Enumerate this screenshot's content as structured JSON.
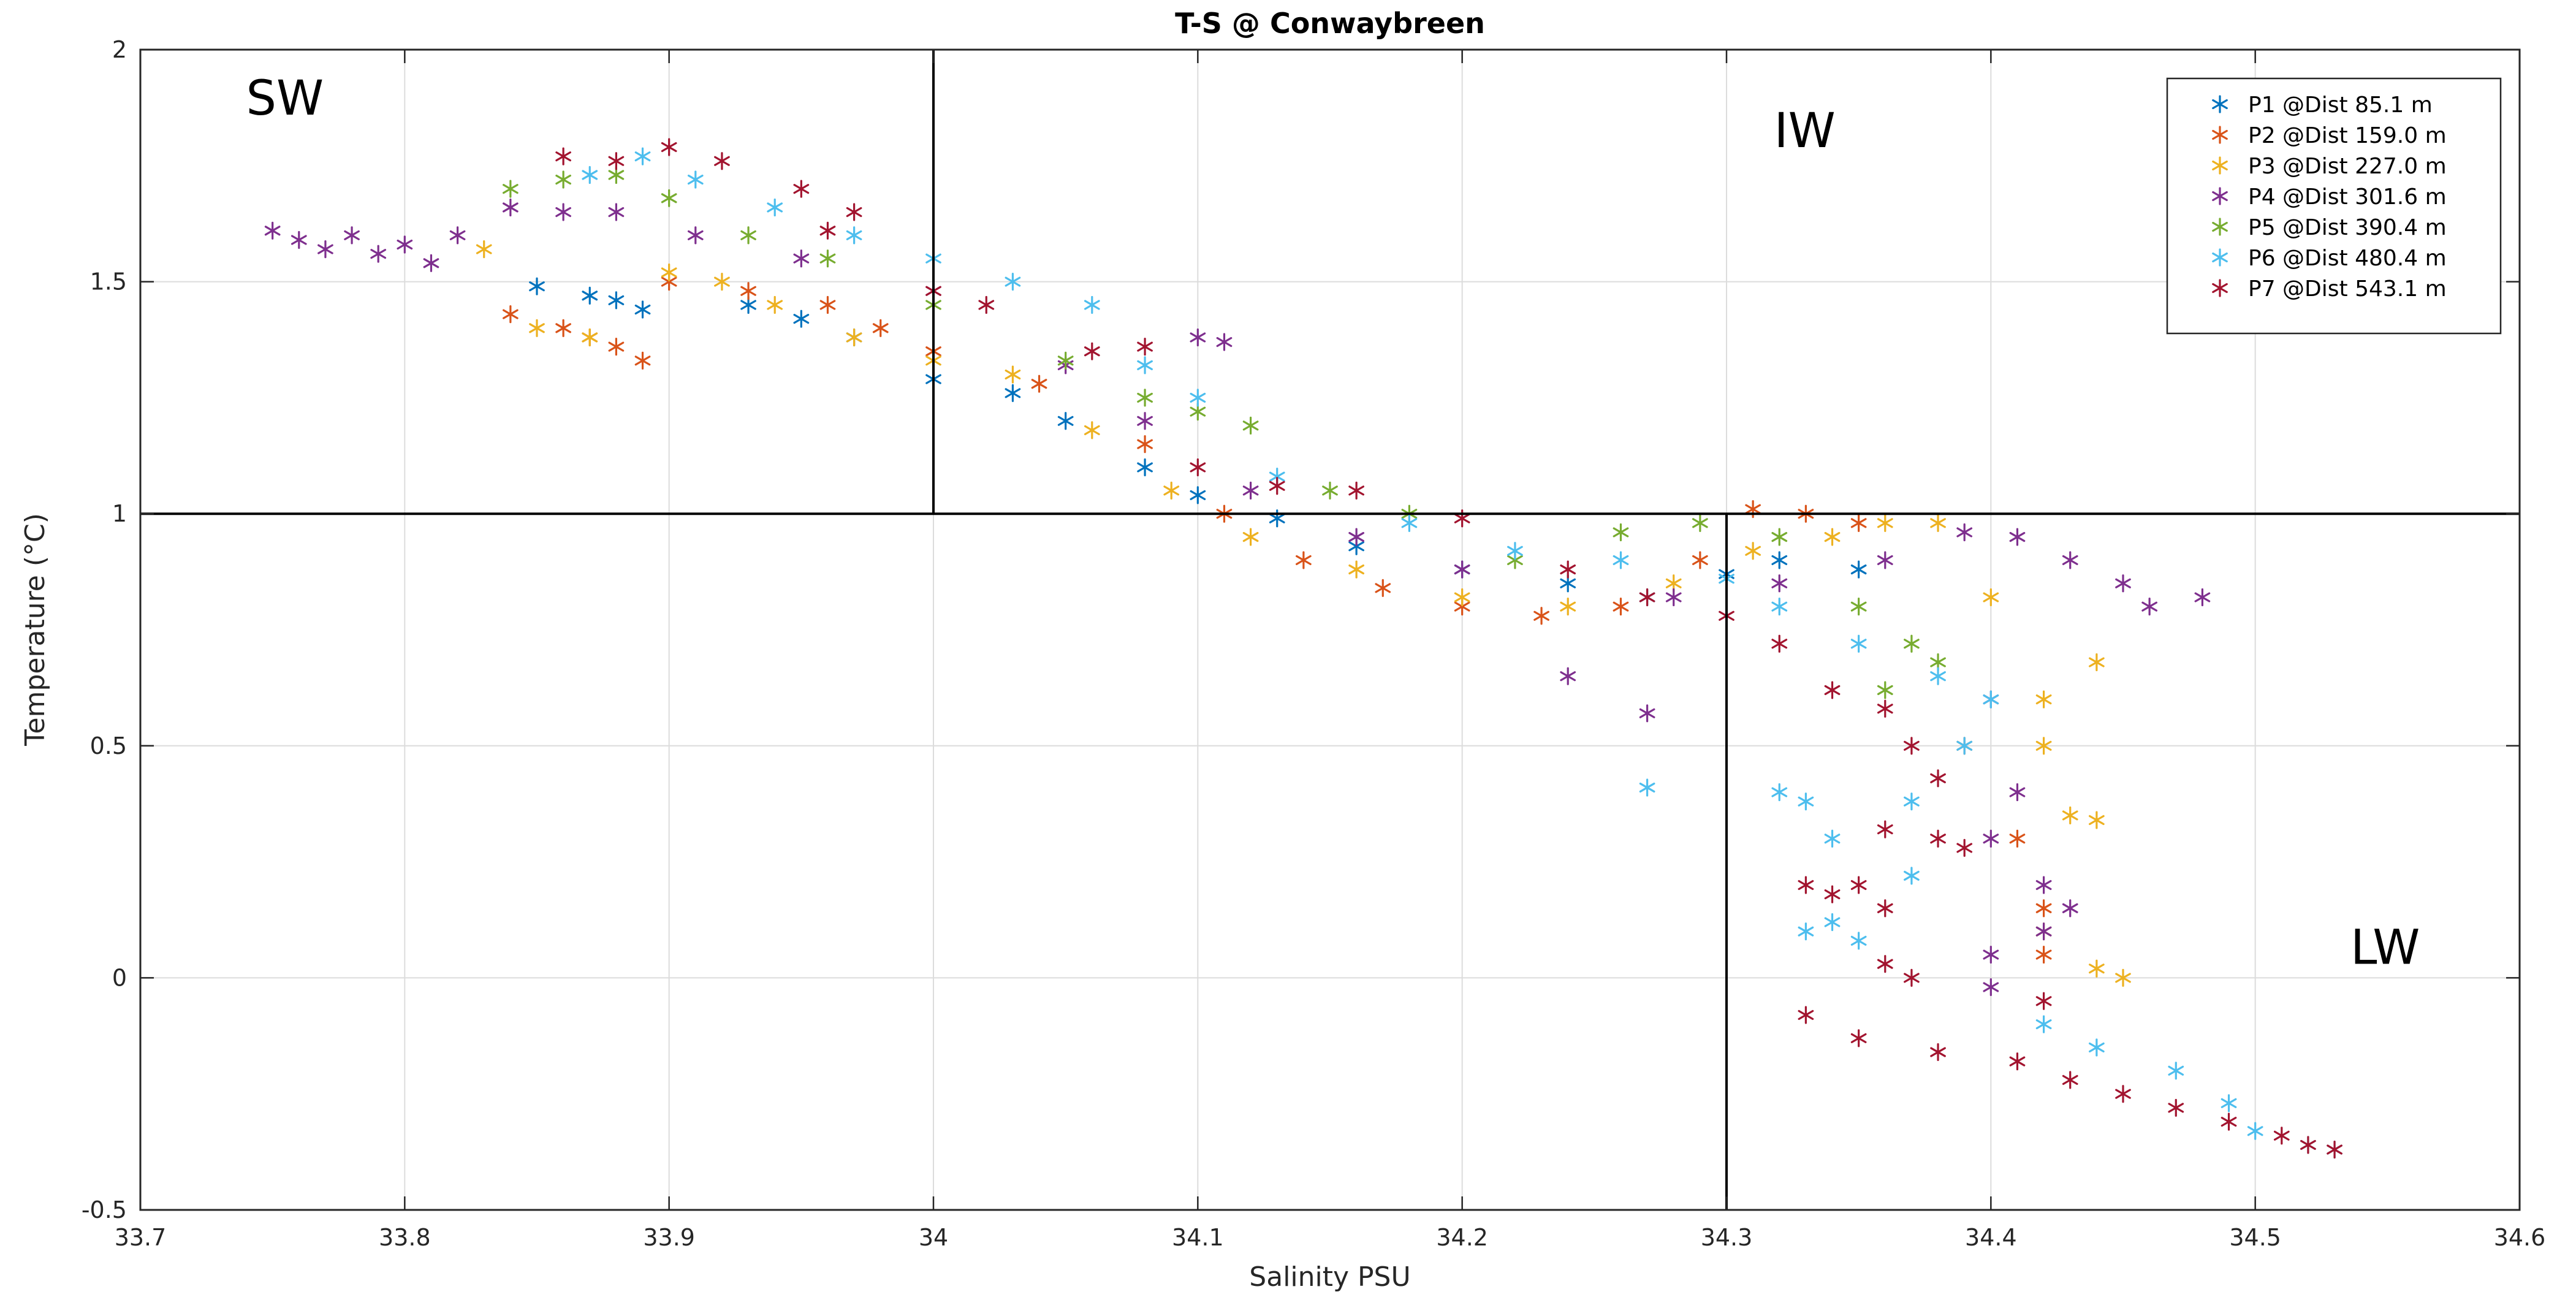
{
  "chart_data": {
    "type": "scatter",
    "title": "T-S @ Conwaybreen",
    "xlabel": "Salinity PSU",
    "ylabel": "Temperature (°C)",
    "xlim": [
      33.7,
      34.6
    ],
    "ylim": [
      -0.5,
      2
    ],
    "xticks": [
      33.7,
      33.8,
      33.9,
      34,
      34.1,
      34.2,
      34.3,
      34.4,
      34.5,
      34.6
    ],
    "xtick_labels": [
      "33.7",
      "33.8",
      "33.9",
      "34",
      "34.1",
      "34.2",
      "34.3",
      "34.4",
      "34.5",
      "34.6"
    ],
    "yticks": [
      -0.5,
      0,
      0.5,
      1,
      1.5,
      2
    ],
    "ytick_labels": [
      "-0.5",
      "0",
      "0.5",
      "1",
      "1.5",
      "2"
    ],
    "grid": true,
    "marker": "asterisk",
    "legend_position": "top-right",
    "divider_lines": {
      "vertical_salinity_sw": 34.0,
      "vertical_salinity_lw": 34.3,
      "horizontal_temperature": 1.0
    },
    "regions": [
      {
        "label": "SW",
        "salinity": 33.74,
        "temperature": 1.86
      },
      {
        "label": "IW",
        "salinity": 34.318,
        "temperature": 1.79
      },
      {
        "label": "LW",
        "salinity": 34.536,
        "temperature": 0.03
      }
    ],
    "series": [
      {
        "name": "P1 @Dist 85.1 m",
        "color": "#0072BD",
        "points": [
          [
            33.85,
            1.49
          ],
          [
            33.87,
            1.47
          ],
          [
            33.88,
            1.46
          ],
          [
            33.89,
            1.44
          ],
          [
            33.93,
            1.45
          ],
          [
            33.95,
            1.42
          ],
          [
            33.97,
            1.38
          ],
          [
            34.0,
            1.29
          ],
          [
            34.03,
            1.26
          ],
          [
            34.05,
            1.2
          ],
          [
            34.08,
            1.1
          ],
          [
            34.1,
            1.04
          ],
          [
            34.13,
            0.99
          ],
          [
            34.16,
            0.93
          ],
          [
            34.2,
            0.88
          ],
          [
            34.24,
            0.85
          ],
          [
            34.27,
            0.82
          ],
          [
            34.3,
            0.87
          ],
          [
            34.32,
            0.9
          ],
          [
            34.35,
            0.88
          ]
        ]
      },
      {
        "name": "P2 @Dist 159.0 m",
        "color": "#D95319",
        "points": [
          [
            33.84,
            1.43
          ],
          [
            33.86,
            1.4
          ],
          [
            33.87,
            1.38
          ],
          [
            33.88,
            1.36
          ],
          [
            33.89,
            1.33
          ],
          [
            33.9,
            1.5
          ],
          [
            33.93,
            1.48
          ],
          [
            33.96,
            1.45
          ],
          [
            33.98,
            1.4
          ],
          [
            34.0,
            1.35
          ],
          [
            34.04,
            1.28
          ],
          [
            34.08,
            1.15
          ],
          [
            34.11,
            1.0
          ],
          [
            34.14,
            0.9
          ],
          [
            34.17,
            0.84
          ],
          [
            34.2,
            0.8
          ],
          [
            34.23,
            0.78
          ],
          [
            34.26,
            0.8
          ],
          [
            34.29,
            0.9
          ],
          [
            34.31,
            1.01
          ],
          [
            34.33,
            1.0
          ],
          [
            34.35,
            0.98
          ],
          [
            34.39,
            0.5
          ],
          [
            34.41,
            0.3
          ],
          [
            34.42,
            0.15
          ],
          [
            34.42,
            0.05
          ]
        ]
      },
      {
        "name": "P3 @Dist 227.0 m",
        "color": "#EDB120",
        "points": [
          [
            33.83,
            1.57
          ],
          [
            33.85,
            1.4
          ],
          [
            33.87,
            1.38
          ],
          [
            33.9,
            1.52
          ],
          [
            33.92,
            1.5
          ],
          [
            33.94,
            1.45
          ],
          [
            33.97,
            1.38
          ],
          [
            34.0,
            1.33
          ],
          [
            34.03,
            1.3
          ],
          [
            34.06,
            1.18
          ],
          [
            34.09,
            1.05
          ],
          [
            34.12,
            0.95
          ],
          [
            34.16,
            0.88
          ],
          [
            34.2,
            0.82
          ],
          [
            34.24,
            0.8
          ],
          [
            34.28,
            0.85
          ],
          [
            34.31,
            0.92
          ],
          [
            34.34,
            0.95
          ],
          [
            34.36,
            0.98
          ],
          [
            34.38,
            0.98
          ],
          [
            34.4,
            0.82
          ],
          [
            34.42,
            0.6
          ],
          [
            34.42,
            0.5
          ],
          [
            34.43,
            0.35
          ],
          [
            34.44,
            0.34
          ],
          [
            34.42,
            0.1
          ],
          [
            34.44,
            0.02
          ],
          [
            34.45,
            0.0
          ],
          [
            34.44,
            0.68
          ]
        ]
      },
      {
        "name": "P4 @Dist 301.6 m",
        "color": "#7E2F8E",
        "points": [
          [
            33.75,
            1.61
          ],
          [
            33.76,
            1.59
          ],
          [
            33.77,
            1.57
          ],
          [
            33.78,
            1.6
          ],
          [
            33.79,
            1.56
          ],
          [
            33.8,
            1.58
          ],
          [
            33.81,
            1.54
          ],
          [
            33.82,
            1.6
          ],
          [
            33.84,
            1.66
          ],
          [
            33.86,
            1.65
          ],
          [
            33.88,
            1.65
          ],
          [
            33.91,
            1.6
          ],
          [
            33.95,
            1.55
          ],
          [
            34.0,
            1.48
          ],
          [
            34.05,
            1.32
          ],
          [
            34.08,
            1.2
          ],
          [
            34.12,
            1.05
          ],
          [
            34.16,
            0.95
          ],
          [
            34.2,
            0.88
          ],
          [
            34.24,
            0.65
          ],
          [
            34.27,
            0.57
          ],
          [
            34.28,
            0.82
          ],
          [
            34.32,
            0.85
          ],
          [
            34.36,
            0.9
          ],
          [
            34.39,
            0.96
          ],
          [
            34.41,
            0.95
          ],
          [
            34.43,
            0.9
          ],
          [
            34.45,
            0.85
          ],
          [
            34.46,
            0.8
          ],
          [
            34.48,
            0.82
          ],
          [
            34.4,
            0.6
          ],
          [
            34.41,
            0.4
          ],
          [
            34.4,
            0.3
          ],
          [
            34.42,
            0.2
          ],
          [
            34.43,
            0.15
          ],
          [
            34.4,
            0.05
          ],
          [
            34.4,
            -0.02
          ],
          [
            34.42,
            0.1
          ],
          [
            34.1,
            1.38
          ],
          [
            34.11,
            1.37
          ]
        ]
      },
      {
        "name": "P5 @Dist 390.4 m",
        "color": "#77AC30",
        "points": [
          [
            33.84,
            1.7
          ],
          [
            33.86,
            1.72
          ],
          [
            33.88,
            1.73
          ],
          [
            33.9,
            1.68
          ],
          [
            33.93,
            1.6
          ],
          [
            33.96,
            1.55
          ],
          [
            34.0,
            1.45
          ],
          [
            34.05,
            1.33
          ],
          [
            34.08,
            1.25
          ],
          [
            34.1,
            1.22
          ],
          [
            34.12,
            1.19
          ],
          [
            34.15,
            1.05
          ],
          [
            34.18,
            1.0
          ],
          [
            34.22,
            0.9
          ],
          [
            34.26,
            0.96
          ],
          [
            34.29,
            0.98
          ],
          [
            34.32,
            0.95
          ],
          [
            34.35,
            0.8
          ],
          [
            34.37,
            0.72
          ],
          [
            34.38,
            0.68
          ],
          [
            34.36,
            0.62
          ]
        ]
      },
      {
        "name": "P6 @Dist 480.4 m",
        "color": "#4DBEEE",
        "points": [
          [
            33.87,
            1.73
          ],
          [
            33.89,
            1.77
          ],
          [
            33.91,
            1.72
          ],
          [
            33.94,
            1.66
          ],
          [
            33.97,
            1.6
          ],
          [
            34.0,
            1.55
          ],
          [
            34.03,
            1.5
          ],
          [
            34.06,
            1.45
          ],
          [
            34.08,
            1.32
          ],
          [
            34.1,
            1.25
          ],
          [
            34.13,
            1.08
          ],
          [
            34.18,
            0.98
          ],
          [
            34.22,
            0.92
          ],
          [
            34.26,
            0.9
          ],
          [
            34.3,
            0.86
          ],
          [
            34.32,
            0.8
          ],
          [
            34.35,
            0.72
          ],
          [
            34.38,
            0.65
          ],
          [
            34.4,
            0.6
          ],
          [
            34.39,
            0.5
          ],
          [
            34.37,
            0.38
          ],
          [
            34.37,
            0.22
          ],
          [
            34.34,
            0.12
          ],
          [
            34.33,
            0.1
          ],
          [
            34.35,
            0.08
          ],
          [
            34.27,
            0.41
          ],
          [
            34.32,
            0.4
          ],
          [
            34.33,
            0.38
          ],
          [
            34.34,
            0.3
          ],
          [
            34.42,
            -0.1
          ],
          [
            34.44,
            -0.15
          ],
          [
            34.47,
            -0.2
          ],
          [
            34.49,
            -0.27
          ],
          [
            34.5,
            -0.33
          ],
          [
            34.52,
            -0.36
          ],
          [
            34.53,
            -0.37
          ]
        ]
      },
      {
        "name": "P7 @Dist 543.1 m",
        "color": "#A2142F",
        "points": [
          [
            33.86,
            1.77
          ],
          [
            33.88,
            1.76
          ],
          [
            33.9,
            1.79
          ],
          [
            33.92,
            1.76
          ],
          [
            33.95,
            1.7
          ],
          [
            33.97,
            1.65
          ],
          [
            33.96,
            1.61
          ],
          [
            34.0,
            1.48
          ],
          [
            34.02,
            1.45
          ],
          [
            34.06,
            1.35
          ],
          [
            34.08,
            1.36
          ],
          [
            34.1,
            1.1
          ],
          [
            34.13,
            1.06
          ],
          [
            34.16,
            1.05
          ],
          [
            34.2,
            0.99
          ],
          [
            34.24,
            0.88
          ],
          [
            34.27,
            0.82
          ],
          [
            34.3,
            0.78
          ],
          [
            34.32,
            0.72
          ],
          [
            34.34,
            0.62
          ],
          [
            34.36,
            0.58
          ],
          [
            34.37,
            0.5
          ],
          [
            34.38,
            0.43
          ],
          [
            34.36,
            0.32
          ],
          [
            34.38,
            0.3
          ],
          [
            34.39,
            0.28
          ],
          [
            34.35,
            0.2
          ],
          [
            34.36,
            0.15
          ],
          [
            34.34,
            0.18
          ],
          [
            34.33,
            0.2
          ],
          [
            34.36,
            0.03
          ],
          [
            34.37,
            0.0
          ],
          [
            34.33,
            -0.08
          ],
          [
            34.35,
            -0.13
          ],
          [
            34.38,
            -0.16
          ],
          [
            34.41,
            -0.18
          ],
          [
            34.43,
            -0.22
          ],
          [
            34.45,
            -0.25
          ],
          [
            34.47,
            -0.28
          ],
          [
            34.49,
            -0.31
          ],
          [
            34.51,
            -0.34
          ],
          [
            34.52,
            -0.36
          ],
          [
            34.53,
            -0.37
          ],
          [
            34.42,
            -0.05
          ]
        ]
      }
    ]
  }
}
